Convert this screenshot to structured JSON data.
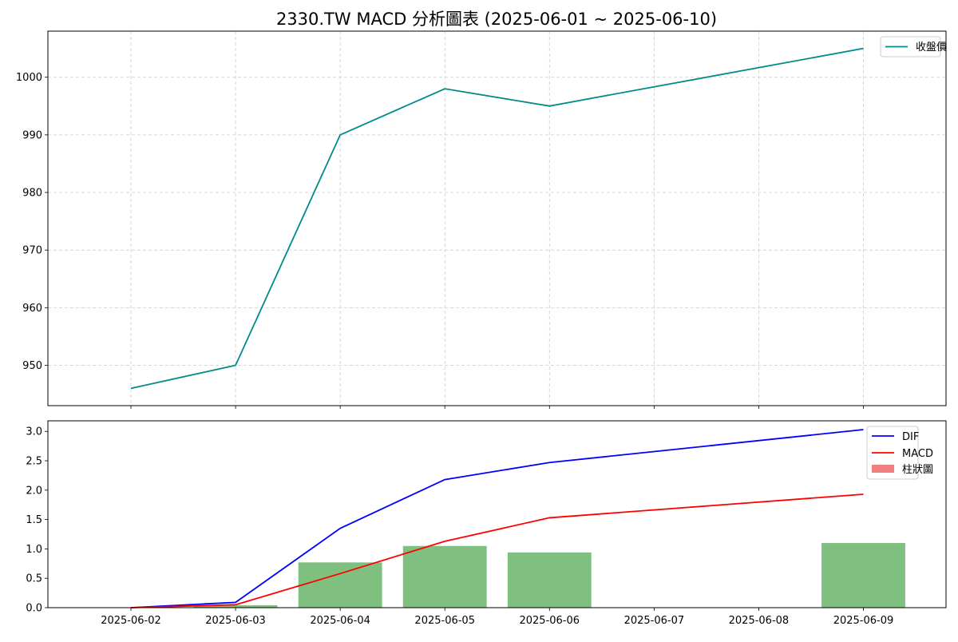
{
  "title": "2330.TW MACD 分析圖表 (2025-06-01 ~ 2025-06-10)",
  "colors": {
    "price": "#008b8b",
    "dif": "#0000ff",
    "macd": "#ff0000",
    "hist_pos": "#7fbf7f",
    "hist_neg": "#f08080",
    "grid": "#cccccc"
  },
  "chart_data": [
    {
      "type": "line",
      "name": "price-panel",
      "x": [
        "2025-06-02",
        "2025-06-03",
        "2025-06-04",
        "2025-06-05",
        "2025-06-06",
        "2025-06-09"
      ],
      "series": [
        {
          "name": "收盤價",
          "values": [
            946,
            950,
            990,
            998,
            995,
            1005
          ]
        }
      ],
      "yticks": [
        950,
        960,
        970,
        980,
        990,
        1000
      ],
      "ylim": [
        943,
        1008
      ],
      "grid": true,
      "legend": "top-right"
    },
    {
      "type": "line",
      "name": "macd-panel",
      "x": [
        "2025-06-02",
        "2025-06-03",
        "2025-06-04",
        "2025-06-05",
        "2025-06-06",
        "2025-06-09"
      ],
      "series": [
        {
          "name": "DIF",
          "values": [
            0.0,
            0.09,
            1.35,
            2.18,
            2.47,
            3.03
          ]
        },
        {
          "name": "MACD",
          "values": [
            0.0,
            0.05,
            0.58,
            1.13,
            1.53,
            1.93
          ]
        }
      ],
      "histogram": {
        "name": "柱狀圖",
        "values": [
          0.0,
          0.04,
          0.77,
          1.05,
          0.94,
          1.1
        ]
      },
      "yticks": [
        0.0,
        0.5,
        1.0,
        1.5,
        2.0,
        2.5,
        3.0
      ],
      "ylim": [
        0,
        3.18
      ],
      "xticks": [
        "2025-06-02",
        "2025-06-03",
        "2025-06-04",
        "2025-06-05",
        "2025-06-06",
        "2025-06-07",
        "2025-06-08",
        "2025-06-09"
      ],
      "legend": "top-right"
    }
  ]
}
